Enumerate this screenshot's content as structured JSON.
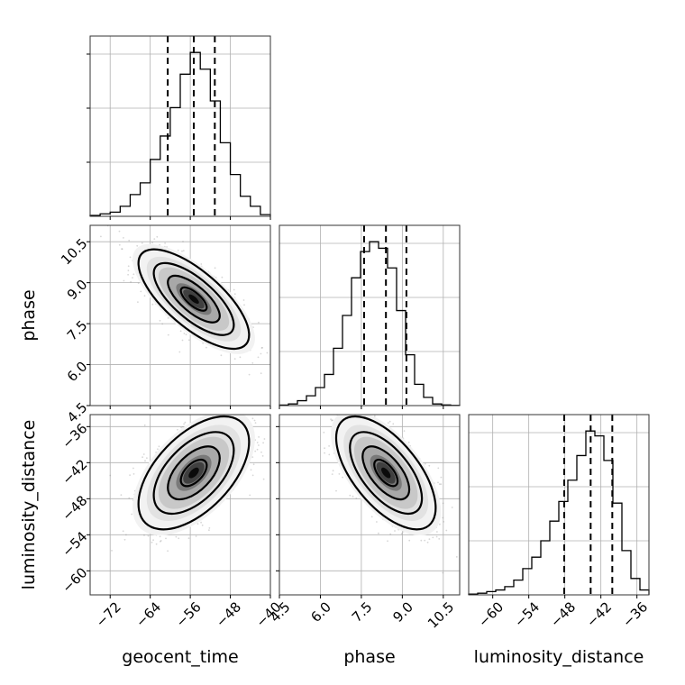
{
  "chart_data": {
    "type": "corner",
    "grid": true,
    "parameters": [
      {
        "name": "geocent_time",
        "label": "geocent_time",
        "range": [
          -76,
          -40
        ],
        "ticks": [
          -72,
          -64,
          -56,
          -48,
          -40
        ],
        "tick_labels": [
          "−72",
          "−64",
          "−56",
          "−48",
          "−40"
        ],
        "quantiles": [
          -60.5,
          -55.3,
          -51.1
        ],
        "histogram": {
          "bin_edges": [
            -76,
            -74,
            -72,
            -70,
            -68,
            -66,
            -64,
            -62,
            -60,
            -58,
            -56,
            -54,
            -52,
            -50,
            -48,
            -46,
            -44,
            -42,
            -40
          ],
          "counts": [
            0.5,
            1.5,
            2.5,
            6,
            13,
            20,
            34,
            48,
            65,
            85,
            98,
            88,
            69,
            44,
            25,
            12,
            6,
            1
          ]
        }
      },
      {
        "name": "phase",
        "label": "phase",
        "range": [
          4.5,
          11.1
        ],
        "ticks": [
          4.5,
          6.0,
          7.5,
          9.0,
          10.5
        ],
        "tick_labels": [
          "4.5",
          "6.0",
          "7.5",
          "9.0",
          "10.5"
        ],
        "quantiles": [
          7.6,
          8.4,
          9.15
        ],
        "histogram": {
          "bin_edges": [
            4.5,
            4.83,
            5.16,
            5.49,
            5.82,
            6.15,
            6.48,
            6.81,
            7.14,
            7.47,
            7.8,
            8.13,
            8.46,
            8.79,
            9.12,
            9.45,
            9.78,
            10.11,
            10.44,
            10.77,
            11.1
          ],
          "counts": [
            0.3,
            1,
            3,
            6,
            11,
            19,
            35,
            55,
            78,
            94,
            100,
            96,
            84,
            58,
            31,
            13,
            5,
            1,
            0.4,
            0.1
          ]
        }
      },
      {
        "name": "luminosity_distance",
        "label": "luminosity_distance",
        "range": [
          -64,
          -34
        ],
        "ticks": [
          -60,
          -54,
          -48,
          -42,
          -36
        ],
        "tick_labels": [
          "−60",
          "−54",
          "−48",
          "−42",
          "−36"
        ],
        "quantiles": [
          -48.1,
          -43.7,
          -40.1
        ],
        "histogram": {
          "bin_edges": [
            -64,
            -62.5,
            -61,
            -59.5,
            -58,
            -56.5,
            -55,
            -53.5,
            -52,
            -50.5,
            -49,
            -47.5,
            -46,
            -44.5,
            -43,
            -41.5,
            -40,
            -38.5,
            -37,
            -35.5,
            -34
          ],
          "counts": [
            0.5,
            1,
            2,
            3,
            5,
            9,
            16,
            23,
            33,
            45,
            57,
            70,
            85,
            100,
            97,
            82,
            56,
            27,
            10,
            3
          ]
        }
      }
    ]
  }
}
